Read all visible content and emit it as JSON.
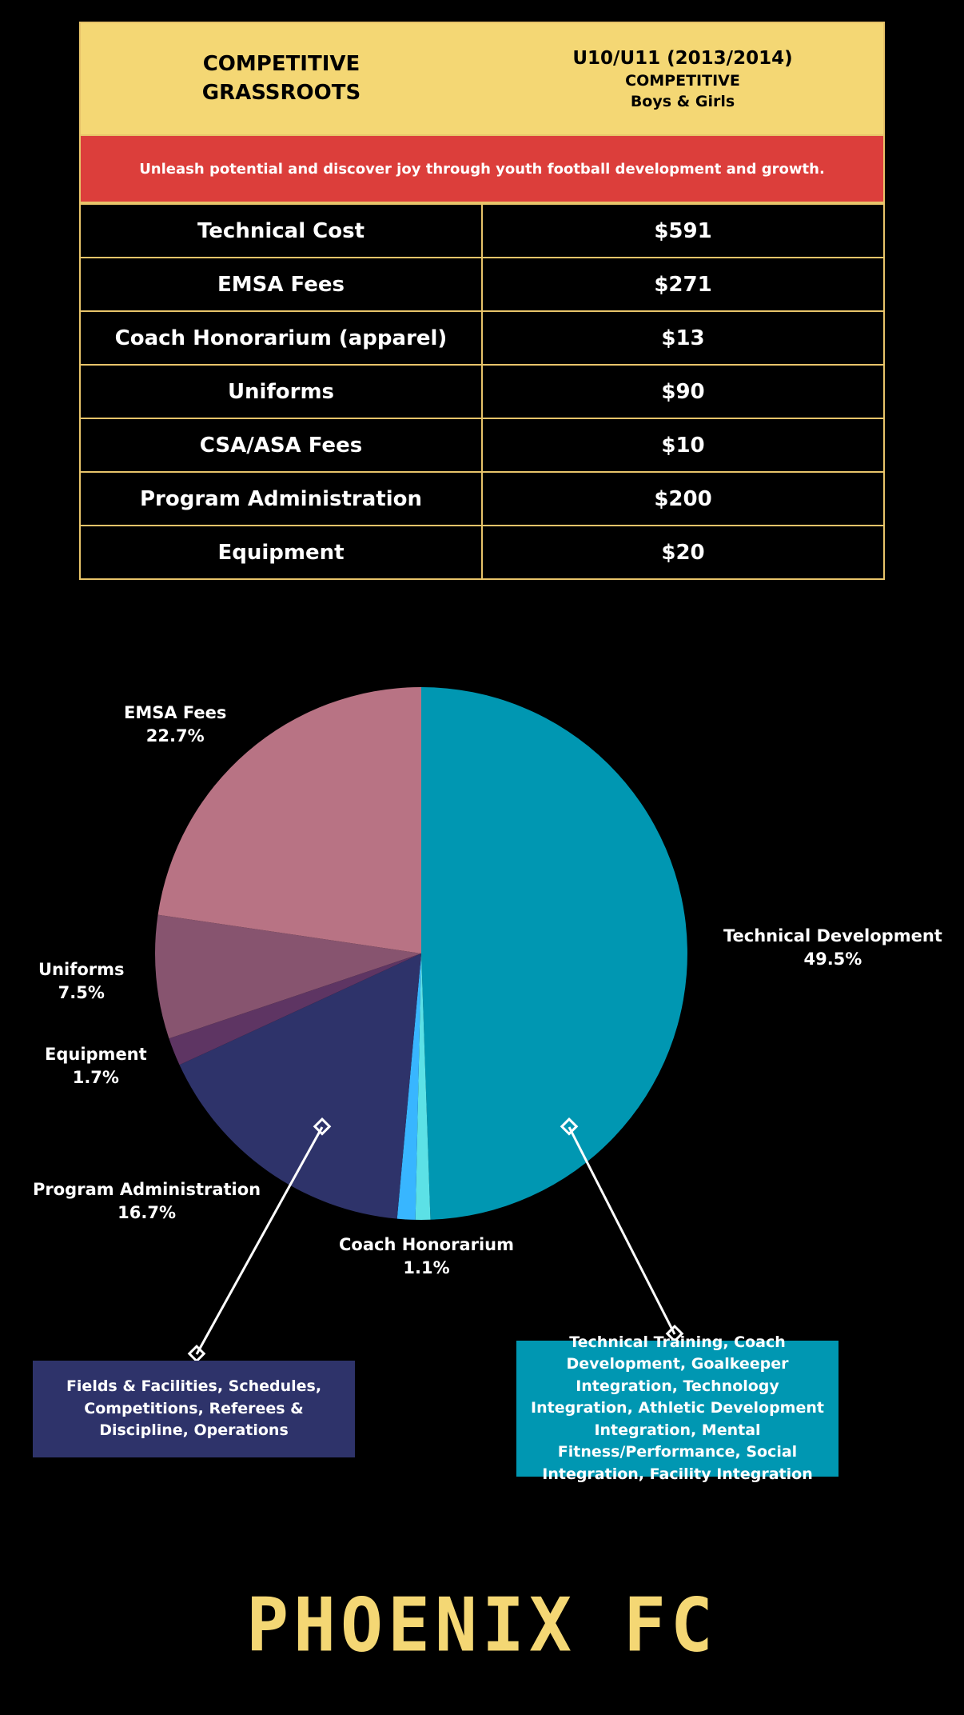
{
  "header": {
    "title_line1": "COMPETITIVE",
    "title_line2": "GRASSROOTS",
    "division": "U10/U11 (2013/2014)",
    "level": "COMPETITIVE",
    "gender": "Boys & Girls"
  },
  "banner": "Unleash potential and discover joy through youth football development and growth.",
  "costs": [
    {
      "label": "Technical Cost",
      "value": "$591"
    },
    {
      "label": "EMSA Fees",
      "value": "$271"
    },
    {
      "label": "Coach Honorarium (apparel)",
      "value": "$13"
    },
    {
      "label": "Uniforms",
      "value": "$90"
    },
    {
      "label": "CSA/ASA Fees",
      "value": "$10"
    },
    {
      "label": "Program Administration",
      "value": "$200"
    },
    {
      "label": "Equipment",
      "value": "$20"
    }
  ],
  "chart_data": {
    "type": "pie",
    "slices": [
      {
        "name": "Technical Development",
        "pct": "49.5%",
        "value": 49.5,
        "color": "#0097b2"
      },
      {
        "name": "",
        "pct": "",
        "value": 0.9,
        "color": "#5ce1e6"
      },
      {
        "name": "Coach Honorarium",
        "pct": "1.1%",
        "value": 1.1,
        "color": "#38b6ff"
      },
      {
        "name": "Program Administration",
        "pct": "16.7%",
        "value": 16.7,
        "color": "#2e336a"
      },
      {
        "name": "Equipment",
        "pct": "1.7%",
        "value": 1.7,
        "color": "#5e3563"
      },
      {
        "name": "Uniforms",
        "pct": "7.5%",
        "value": 7.5,
        "color": "#87546f"
      },
      {
        "name": "EMSA Fees",
        "pct": "22.7%",
        "value": 22.7,
        "color": "#b87384"
      }
    ]
  },
  "callouts": {
    "admin": "Fields & Facilities, Schedules, Competitions, Referees & Discipline, Operations",
    "tech": "Technical Training, Coach Development, Goalkeeper Integration, Technology Integration, Athletic Development Integration, Mental Fitness/Performance, Social Integration, Facility Integration"
  },
  "logo": "PHOENIX FC"
}
